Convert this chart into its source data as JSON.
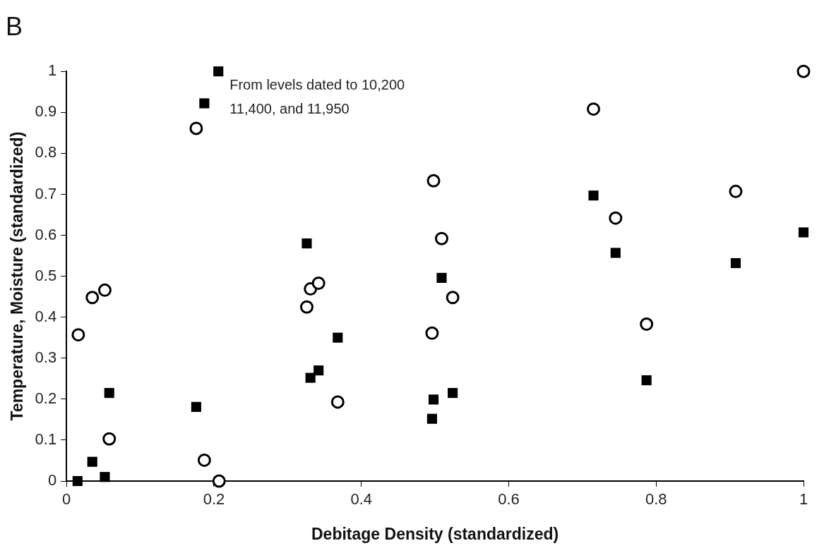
{
  "chart_data": {
    "type": "scatter",
    "title": "B",
    "xlabel": "Debitage Density (standardized)",
    "ylabel": "Temperature, Moisture (standardized)",
    "xlim": [
      0,
      1
    ],
    "xticks": [
      0,
      0.2,
      0.4,
      0.6,
      0.8,
      1
    ],
    "ylim": [
      0,
      1
    ],
    "yticks": [
      0,
      0.1,
      0.2,
      0.3,
      0.4,
      0.5,
      0.6,
      0.7,
      0.8,
      0.9,
      1
    ],
    "grid": false,
    "legend": false,
    "annotations": [
      {
        "text": "From levels dated to 10,200\n11,400, and 11,950",
        "x": 0.206,
        "y": 1.0
      }
    ],
    "series": [
      {
        "color": "#000000",
        "marker": "square",
        "x": [
          0.015,
          0.035,
          0.052,
          0.058,
          0.176,
          0.187,
          0.206,
          0.326,
          0.331,
          0.342,
          0.368,
          0.496,
          0.498,
          0.524,
          0.509,
          0.715,
          0.745,
          0.787,
          0.908,
          1.0
        ],
        "values": [
          0.0,
          0.047,
          0.01,
          0.215,
          0.181,
          0.922,
          1.0,
          0.58,
          0.252,
          0.27,
          0.35,
          0.152,
          0.199,
          0.215,
          0.496,
          0.697,
          0.557,
          0.246,
          0.532,
          0.607
        ]
      },
      {
        "color": "#000000",
        "marker": "circle",
        "x": [
          0.016,
          0.035,
          0.052,
          0.058,
          0.176,
          0.187,
          0.207,
          0.326,
          0.331,
          0.342,
          0.368,
          0.498,
          0.509,
          0.524,
          0.496,
          0.715,
          0.745,
          0.787,
          0.908,
          1.0
        ],
        "values": [
          0.357,
          0.448,
          0.466,
          0.103,
          0.861,
          0.051,
          0.0,
          0.425,
          0.469,
          0.483,
          0.193,
          0.733,
          0.592,
          0.448,
          0.361,
          0.908,
          0.642,
          0.383,
          0.707,
          1.0
        ]
      }
    ]
  }
}
